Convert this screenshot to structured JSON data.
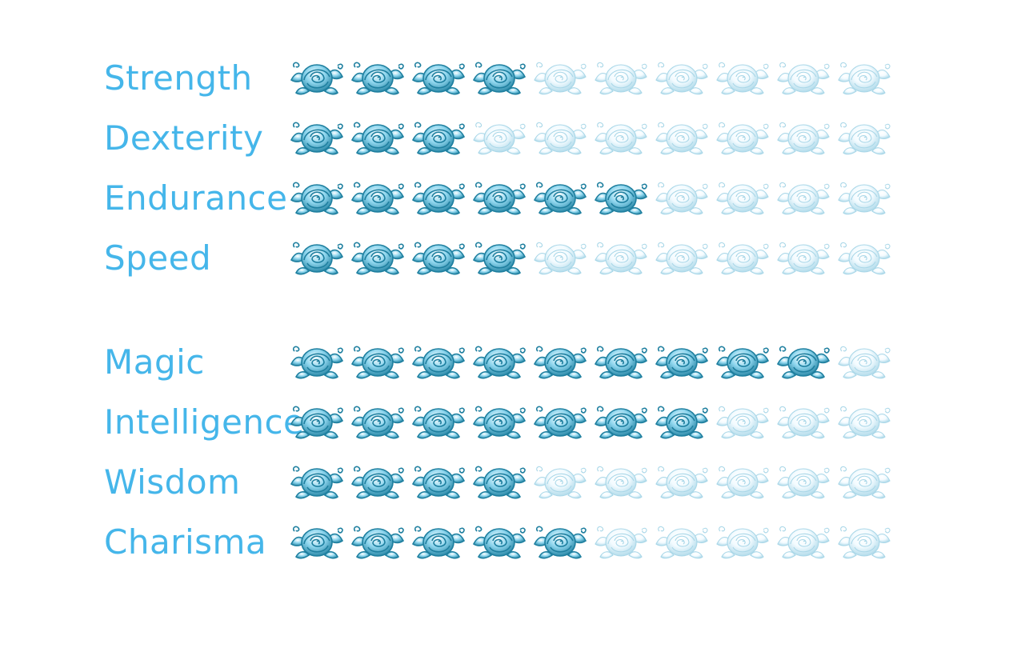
{
  "chart_data": {
    "type": "table",
    "max": 10,
    "colors": {
      "label": "#45b6ea",
      "filled_light": "#8fd6ee",
      "filled_dark": "#1e7f9f",
      "empty_light": "#f3fbff",
      "empty_dark": "#a9d7e8"
    },
    "icon": "rose-icon",
    "groups": [
      {
        "items": [
          {
            "label": "Strength",
            "value": 4
          },
          {
            "label": "Dexterity",
            "value": 3
          },
          {
            "label": "Endurance",
            "value": 6
          },
          {
            "label": "Speed",
            "value": 4
          }
        ]
      },
      {
        "items": [
          {
            "label": "Magic",
            "value": 9
          },
          {
            "label": "Intelligence",
            "value": 7
          },
          {
            "label": "Wisdom",
            "value": 4
          },
          {
            "label": "Charisma",
            "value": 5
          }
        ]
      }
    ]
  }
}
